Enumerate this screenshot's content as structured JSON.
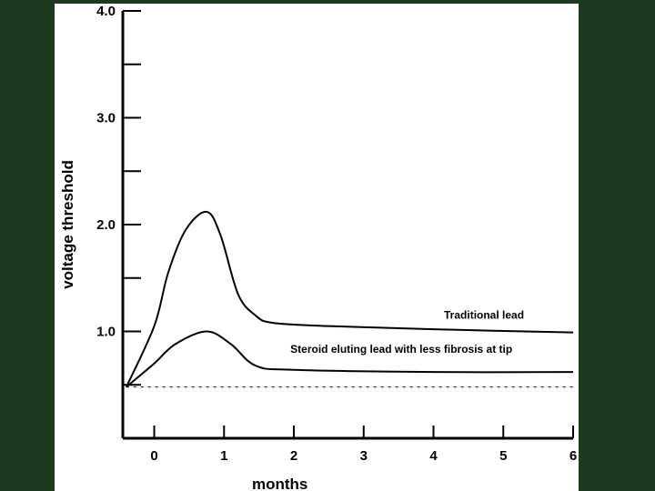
{
  "colors": {
    "background": "#1b3a1f",
    "panel": "#ffffff",
    "ink": "#000000"
  },
  "chart_data": {
    "type": "line",
    "xlabel": "months",
    "ylabel": "voltage threshold",
    "xlim": [
      -0.45,
      6
    ],
    "ylim": [
      0,
      4.0
    ],
    "x_ticks": [
      0,
      1,
      2,
      3,
      4,
      5,
      6
    ],
    "x_tick_labels": [
      "0",
      "1",
      "2",
      "3",
      "4",
      "5",
      "6"
    ],
    "y_ticks": [
      0.5,
      1.0,
      1.5,
      2.0,
      2.5,
      3.0,
      3.5,
      4.0
    ],
    "y_tick_labels": [
      "",
      "1.0",
      "",
      "2.0",
      "",
      "3.0",
      "",
      "4.0"
    ],
    "grid": false,
    "series": [
      {
        "name": "Traditional lead",
        "style": "solid",
        "x": [
          -0.4,
          0,
          0.2,
          0.45,
          0.75,
          0.95,
          1.2,
          1.45,
          1.7,
          2.5,
          4,
          6
        ],
        "y": [
          0.48,
          1.05,
          1.55,
          1.95,
          2.12,
          1.9,
          1.35,
          1.15,
          1.08,
          1.05,
          1.02,
          0.99
        ]
      },
      {
        "name": "Steroid eluting lead with less fibrosis at tip",
        "style": "solid",
        "x": [
          -0.4,
          0,
          0.3,
          0.75,
          1.1,
          1.45,
          2,
          4,
          6
        ],
        "y": [
          0.48,
          0.7,
          0.88,
          1.0,
          0.88,
          0.68,
          0.64,
          0.62,
          0.62
        ]
      },
      {
        "name": "",
        "style": "dashed",
        "x": [
          -0.4,
          6
        ],
        "y": [
          0.48,
          0.48
        ]
      }
    ],
    "annotations": [
      {
        "text": "Traditional lead",
        "x": 4.15,
        "y": 1.12
      },
      {
        "text": "Steroid eluting lead with less fibrosis at tip",
        "x": 1.95,
        "y": 0.8
      }
    ]
  }
}
